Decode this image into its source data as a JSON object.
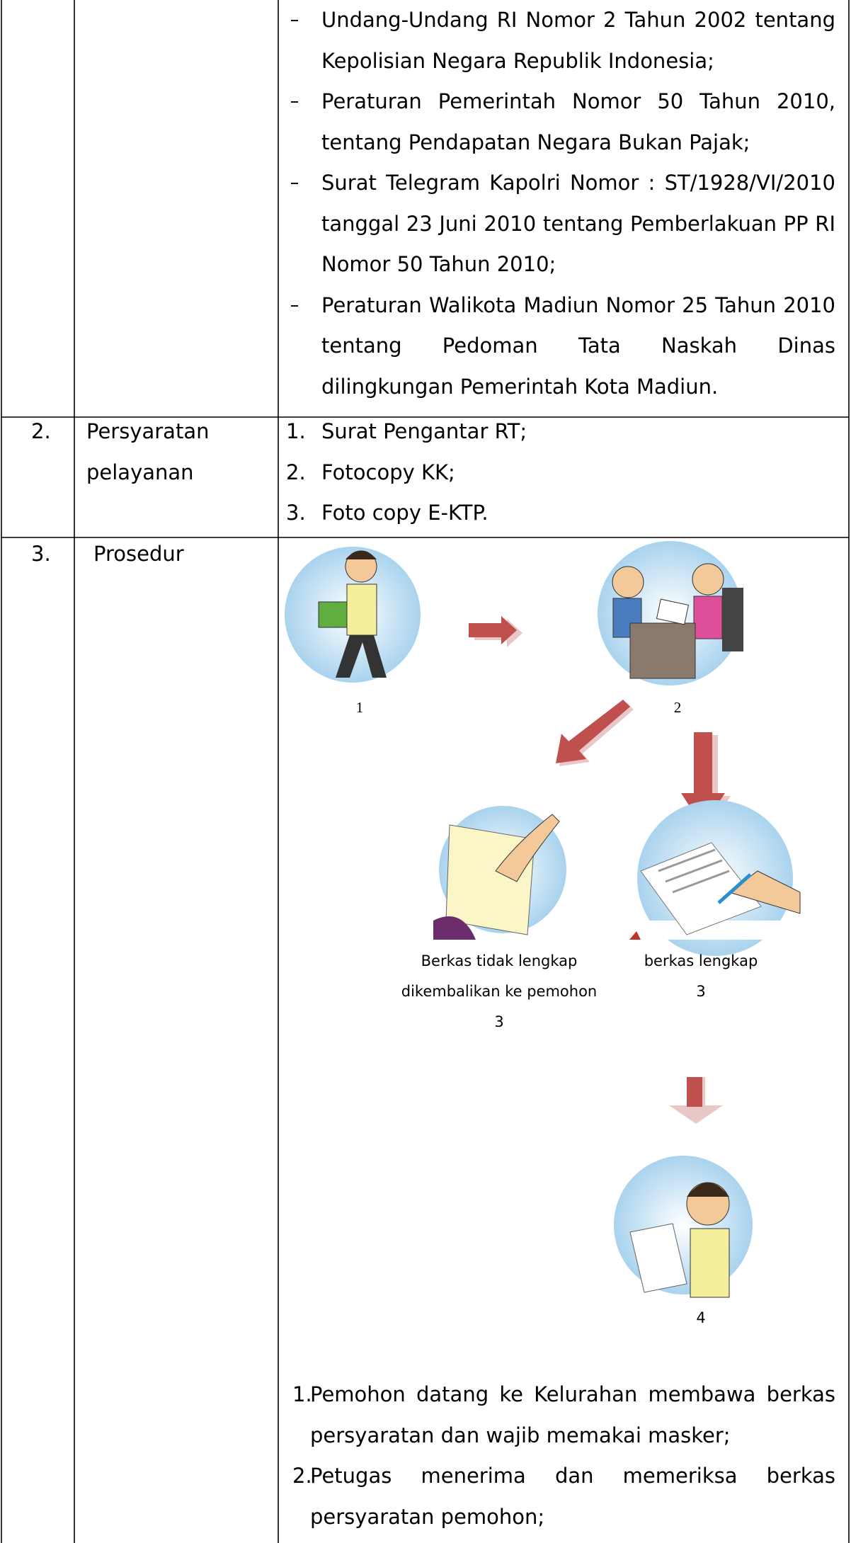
{
  "table": {
    "rows": [
      {
        "no": "",
        "item": "",
        "bullets": [
          "Undang-Undang RI Nomor 2 Tahun 2002 tentang Kepolisian Negara Republik Indonesia;",
          "Peraturan Pemerintah Nomor 50 Tahun 2010, tentang Pendapatan Negara Bukan Pajak;",
          "Surat Telegram Kapolri Nomor : ST/1928/VI/2010 tanggal 23 Juni 2010 tentang Pemberlakuan PP RI Nomor 50 Tahun 2010;",
          "Peraturan Walikota Madiun Nomor 25 Tahun 2010 tentang Pedoman Tata Naskah Dinas dilingkungan Pemerintah Kota Madiun."
        ]
      },
      {
        "no": "2.",
        "item": "Persyaratan pelayanan",
        "list": [
          {
            "number": "1.",
            "text": "Surat Pengantar RT;"
          },
          {
            "number": "2.",
            "text": "Fotocopy KK;"
          },
          {
            "number": "3.",
            "text": "Foto copy E-KTP."
          }
        ]
      },
      {
        "no": "3.",
        "item": "Prosedur",
        "diagram": {
          "step1": "1",
          "step2": "2",
          "incomplete": [
            "Berkas tidak lengkap",
            "dikembalikan ke pemohon",
            "3"
          ],
          "complete": [
            "berkas lengkap",
            "3"
          ],
          "step4": "4"
        },
        "steps": [
          {
            "number": "1.",
            "text": "Pemohon datang ke Kelurahan membawa berkas persyaratan dan wajib memakai masker;"
          },
          {
            "number": "2.",
            "text": "Petugas menerima dan memeriksa berkas persyaratan pemohon;"
          }
        ]
      }
    ]
  }
}
